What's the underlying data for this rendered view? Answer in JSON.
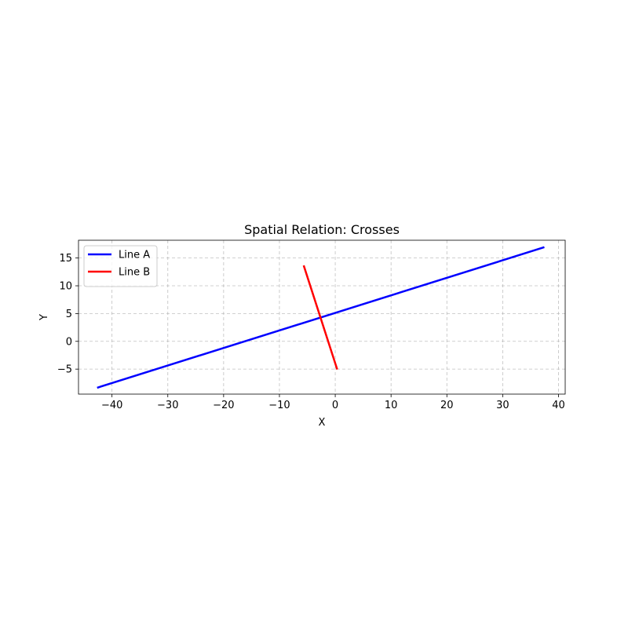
{
  "chart_data": {
    "type": "line",
    "title": "Spatial Relation: Crosses",
    "xlabel": "X",
    "ylabel": "Y",
    "xlim": [
      -46.0,
      41.2
    ],
    "ylim": [
      -9.5,
      18.2
    ],
    "xticks": [
      -40,
      -30,
      -20,
      -10,
      0,
      10,
      20,
      30,
      40
    ],
    "xtick_labels": [
      "−40",
      "−30",
      "−20",
      "−10",
      "0",
      "10",
      "20",
      "30",
      "40"
    ],
    "yticks": [
      -5,
      0,
      5,
      10,
      15
    ],
    "ytick_labels": [
      "−5",
      "0",
      "5",
      "10",
      "15"
    ],
    "grid": true,
    "legend_position": "top-left",
    "series": [
      {
        "name": "Line A",
        "color": "#0000ff",
        "points": [
          [
            -42.5,
            -8.3
          ],
          [
            37.3,
            16.9
          ]
        ]
      },
      {
        "name": "Line B",
        "color": "#ff0000",
        "points": [
          [
            -5.6,
            13.5
          ],
          [
            0.3,
            -4.9
          ]
        ]
      }
    ]
  }
}
